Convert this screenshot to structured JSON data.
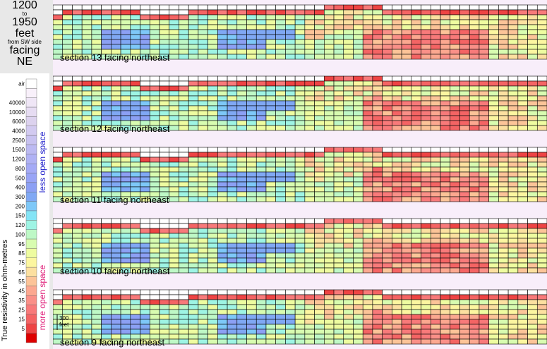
{
  "title": {
    "line1": "1200",
    "line2": "to",
    "line3": "1950",
    "line4": "feet",
    "line5": "from SW side",
    "line6": "facing",
    "line7": "NE"
  },
  "legend": {
    "ylabel": "True resistivity in ohm-metres",
    "top_text": "less open space",
    "bottom_text": "more open space",
    "top_color": "#2222cc",
    "bottom_color": "#e0207a",
    "items": [
      {
        "label": "air",
        "color": "#ffffff"
      },
      {
        "label": "",
        "color": "#f8f0fa"
      },
      {
        "label": "40000",
        "color": "#efe6f6"
      },
      {
        "label": "10000",
        "color": "#e6dcf2"
      },
      {
        "label": "6000",
        "color": "#dcd2ee"
      },
      {
        "label": "4000",
        "color": "#d2caf0"
      },
      {
        "label": "2500",
        "color": "#c8c2f0"
      },
      {
        "label": "1500",
        "color": "#bcbaf2"
      },
      {
        "label": "1200",
        "color": "#b0b2f4"
      },
      {
        "label": "800",
        "color": "#a4aaf6"
      },
      {
        "label": "500",
        "color": "#98a4f6"
      },
      {
        "label": "400",
        "color": "#8ca0f4"
      },
      {
        "label": "300",
        "color": "#80a8f4"
      },
      {
        "label": "200",
        "color": "#7ec8f8"
      },
      {
        "label": "150",
        "color": "#84e4f6"
      },
      {
        "label": "120",
        "color": "#9ef4e4"
      },
      {
        "label": "100",
        "color": "#bef8c6"
      },
      {
        "label": "95",
        "color": "#d8fcb0"
      },
      {
        "label": "85",
        "color": "#eefca0"
      },
      {
        "label": "75",
        "color": "#fcf6a0"
      },
      {
        "label": "65",
        "color": "#fce0a0"
      },
      {
        "label": "55",
        "color": "#fcc498"
      },
      {
        "label": "45",
        "color": "#fca890"
      },
      {
        "label": "35",
        "color": "#fa9088"
      },
      {
        "label": "25",
        "color": "#f87a7a"
      },
      {
        "label": "15",
        "color": "#f46464"
      },
      {
        "label": "5",
        "color": "#ee4444"
      },
      {
        "label": "",
        "color": "#dd0000"
      }
    ]
  },
  "scale_bar": {
    "label_top": "300",
    "label_bottom": "feet"
  },
  "sections": [
    {
      "label": "section 13 facing northeast",
      "seed": 13
    },
    {
      "label": "section 12 facing northeast",
      "seed": 12
    },
    {
      "label": "section 11 facing northeast",
      "seed": 11
    },
    {
      "label": "section 10 facing northeast",
      "seed": 10
    },
    {
      "label": "section  9 facing northeast",
      "seed": 9
    }
  ],
  "chart_data": {
    "type": "heatmap",
    "x_label": "",
    "y_label": "True resistivity in ohm-metres",
    "colorbar_ticks": [
      "air",
      "40000",
      "10000",
      "6000",
      "4000",
      "2500",
      "1500",
      "1200",
      "800",
      "500",
      "400",
      "300",
      "200",
      "150",
      "120",
      "100",
      "95",
      "85",
      "75",
      "65",
      "55",
      "45",
      "35",
      "25",
      "15",
      "5"
    ],
    "series": [
      {
        "name": "section 13 facing northeast"
      },
      {
        "name": "section 12 facing northeast"
      },
      {
        "name": "section 11 facing northeast"
      },
      {
        "name": "section 10 facing northeast"
      },
      {
        "name": "section  9 facing northeast"
      }
    ]
  }
}
